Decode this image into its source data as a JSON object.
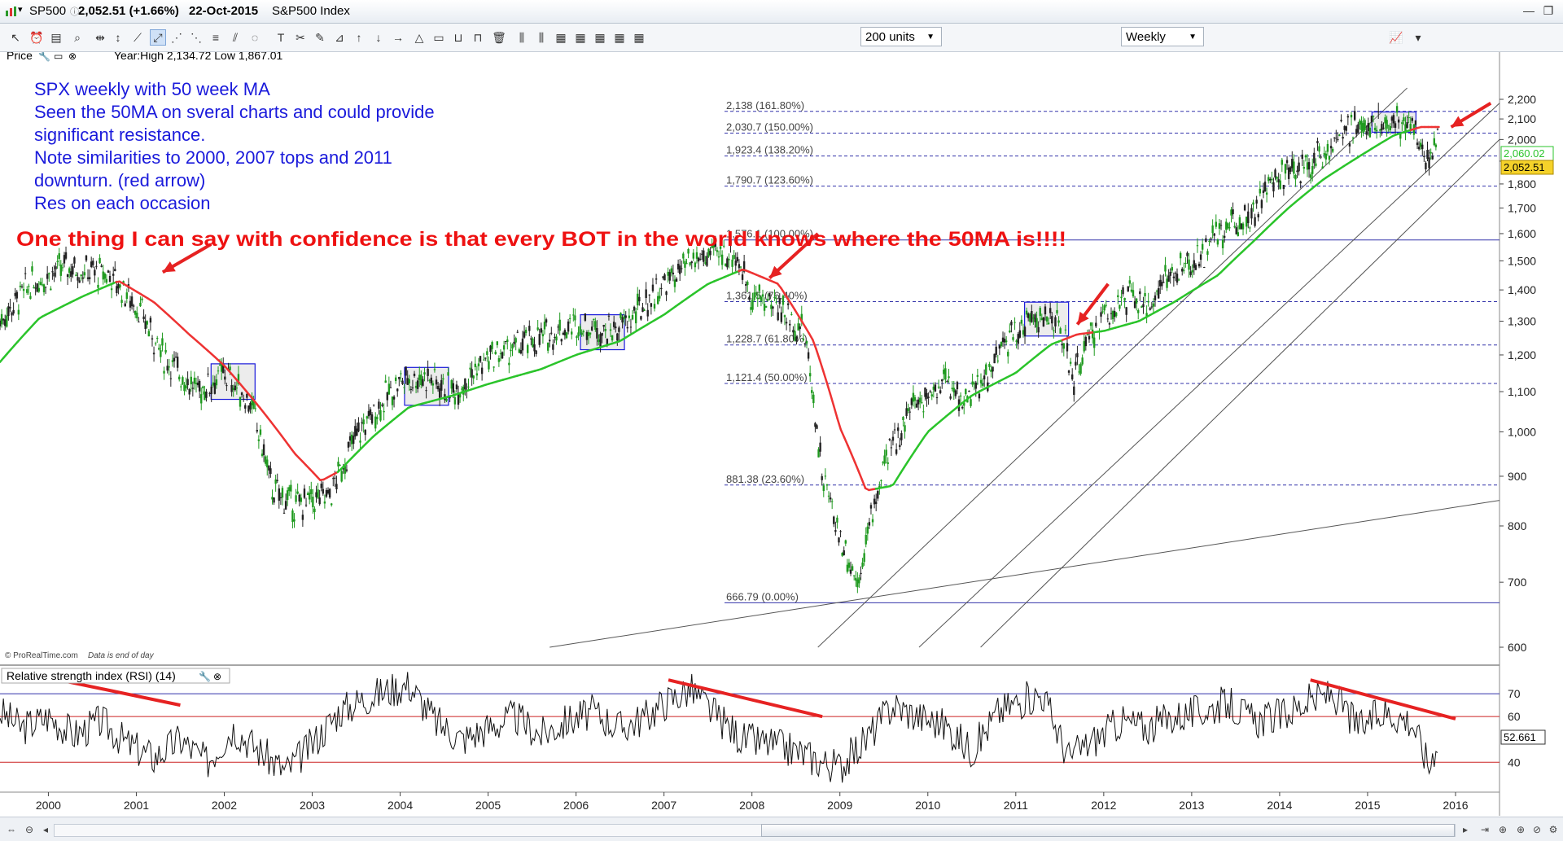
{
  "window": {
    "symbol": "SP500",
    "last": "2,052.51",
    "change": "(+1.66%)",
    "date": "22-Oct-2015",
    "name": "S&P500 Index"
  },
  "toolbar": {
    "units_value": "200 units",
    "interval_value": "Weekly"
  },
  "price_panel": {
    "label": "Price",
    "stats": "Year:High 2,134.72 Low 1,867.01",
    "credit": "© ProRealTime.com",
    "credit_note": "Data is end of day",
    "last_badge": "2,052.51",
    "ma_badge": "2,060.02",
    "annotation_lines": [
      "SPX weekly with 50 week MA",
      "Seen the 50MA on sveral charts and could provide",
      "significant resistance.",
      "Note similarities to 2000, 2007 tops and 2011",
      "downturn. (red arrow)",
      "Res on each occasion"
    ],
    "headline": "One thing I can say with confidence is that every BOT in the world knows where the 50MA is!!!!"
  },
  "rsi_panel": {
    "label": "Relative strength index (RSI) (14)",
    "last_badge": "52.661"
  },
  "colors": {
    "ma_green": "#2bc42b",
    "ma_red": "#ee3333",
    "annotation_blue": "#1a1adb",
    "headline_red": "#ee1111",
    "arrow_red": "#e62222",
    "fib_line": "#3333aa",
    "candle_up": "#1f9a1f",
    "candle_down": "#222222"
  },
  "chart_data": {
    "type": "line",
    "title": "",
    "ylim": [
      600,
      2200
    ],
    "y_ticks": [
      600,
      700,
      800,
      900,
      1000,
      1100,
      1200,
      1300,
      1400,
      1500,
      1600,
      1700,
      1800,
      1900,
      2000,
      2100,
      2200
    ],
    "y_tick_labels": [
      "600",
      "700",
      "800",
      "900",
      "1,000",
      "1,100",
      "1,200",
      "1,300",
      "1,400",
      "1,500",
      "1,600",
      "1,700",
      "1,800",
      "1,900",
      "2,000",
      "2,100",
      "2,200"
    ],
    "x_ticks": [
      2000,
      2001,
      2002,
      2003,
      2004,
      2005,
      2006,
      2007,
      2008,
      2009,
      2010,
      2011,
      2012,
      2013,
      2014,
      2015,
      2016
    ],
    "xlim": [
      1999.45,
      2016.5
    ],
    "price_series": {
      "name": "SP500",
      "x": [
        1999.45,
        1999.8,
        2000.2,
        2000.7,
        2001.0,
        2001.3,
        2001.7,
        2002.0,
        2002.3,
        2002.55,
        2002.8,
        2003.2,
        2003.5,
        2004.0,
        2004.3,
        2004.6,
        2005.0,
        2005.5,
        2006.0,
        2006.4,
        2006.6,
        2007.0,
        2007.4,
        2007.8,
        2008.0,
        2008.3,
        2008.6,
        2008.8,
        2009.0,
        2009.2,
        2009.5,
        2009.8,
        2010.2,
        2010.4,
        2010.6,
        2010.9,
        2011.2,
        2011.5,
        2011.65,
        2011.8,
        2012.0,
        2012.3,
        2012.45,
        2012.7,
        2013.0,
        2013.4,
        2013.7,
        2014.0,
        2014.3,
        2014.6,
        2014.8,
        2015.0,
        2015.3,
        2015.5,
        2015.65,
        2015.75,
        2015.81
      ],
      "values": [
        1300,
        1420,
        1480,
        1450,
        1350,
        1200,
        1100,
        1150,
        1070,
        870,
        840,
        860,
        990,
        1130,
        1140,
        1100,
        1190,
        1240,
        1290,
        1270,
        1300,
        1420,
        1510,
        1530,
        1380,
        1350,
        1260,
        900,
        780,
        700,
        920,
        1060,
        1130,
        1080,
        1110,
        1240,
        1320,
        1290,
        1130,
        1220,
        1320,
        1380,
        1330,
        1440,
        1480,
        1630,
        1690,
        1840,
        1880,
        1980,
        2050,
        2070,
        2100,
        2080,
        1920,
        1950,
        2052.51
      ]
    },
    "ma_series": {
      "name": "50MA",
      "x": [
        1999.45,
        1999.9,
        2000.4,
        2000.8,
        2001.2,
        2001.6,
        2002.0,
        2002.4,
        2002.8,
        2003.1,
        2003.3,
        2003.7,
        2004.1,
        2004.6,
        2005.0,
        2005.6,
        2006.0,
        2006.5,
        2007.0,
        2007.5,
        2007.9,
        2008.3,
        2008.7,
        2009.0,
        2009.3,
        2009.6,
        2010.0,
        2010.5,
        2011.0,
        2011.4,
        2011.7,
        2012.0,
        2012.4,
        2012.8,
        2013.3,
        2013.7,
        2014.1,
        2014.5,
        2014.9,
        2015.3,
        2015.6,
        2015.81
      ],
      "values": [
        1180,
        1310,
        1380,
        1430,
        1360,
        1260,
        1170,
        1060,
        950,
        890,
        910,
        990,
        1060,
        1090,
        1120,
        1160,
        1200,
        1240,
        1320,
        1420,
        1470,
        1420,
        1240,
        1010,
        870,
        880,
        1000,
        1090,
        1150,
        1230,
        1260,
        1270,
        1300,
        1360,
        1450,
        1570,
        1700,
        1820,
        1920,
        2020,
        2060,
        2060.02
      ]
    },
    "fib_levels": [
      {
        "value": 2138,
        "label": "2,138 (161.80%)",
        "style": "dashed"
      },
      {
        "value": 2030.7,
        "label": "2,030.7 (150.00%)",
        "style": "dashed"
      },
      {
        "value": 1923.4,
        "label": "1,923.4 (138.20%)",
        "style": "dashed"
      },
      {
        "value": 1790.7,
        "label": "1,790.7 (123.60%)",
        "style": "dashed"
      },
      {
        "value": 1576.1,
        "label": "1,576.1 (100.00%)",
        "style": "solid"
      },
      {
        "value": 1361.5,
        "label": "1,361.5 (76.40%)",
        "style": "dashed"
      },
      {
        "value": 1228.7,
        "label": "1,228.7 (61.80%)",
        "style": "dashed"
      },
      {
        "value": 1121.4,
        "label": "1,121.4 (50.00%)",
        "style": "dashed"
      },
      {
        "value": 881.38,
        "label": "881.38 (23.60%)",
        "style": "dashed"
      },
      {
        "value": 666.79,
        "label": "666.79 (0.00%)",
        "style": "solid"
      }
    ],
    "boxes": [
      {
        "x0": 2001.85,
        "x1": 2002.35,
        "y0": 1080,
        "y1": 1175
      },
      {
        "x0": 2004.05,
        "x1": 2004.55,
        "y0": 1065,
        "y1": 1165
      },
      {
        "x0": 2006.05,
        "x1": 2006.55,
        "y0": 1215,
        "y1": 1320
      },
      {
        "x0": 2011.1,
        "x1": 2011.6,
        "y0": 1255,
        "y1": 1360
      },
      {
        "x0": 2015.05,
        "x1": 2015.55,
        "y0": 2035,
        "y1": 2135
      }
    ],
    "trend_lines": [
      {
        "x0": 2008.75,
        "y0": 600,
        "x1": 2015.45,
        "y1": 2260
      },
      {
        "x0": 2009.9,
        "y0": 600,
        "x1": 2016.5,
        "y1": 2180
      },
      {
        "x0": 2010.6,
        "y0": 600,
        "x1": 2016.5,
        "y1": 2000
      },
      {
        "x0": 2005.7,
        "y0": 600,
        "x1": 2016.5,
        "y1": 850
      }
    ],
    "rsi": {
      "name": "RSI (14)",
      "levels": [
        70,
        60,
        40
      ],
      "ticks": [
        40,
        60,
        70
      ],
      "ylim": [
        28,
        80
      ],
      "x": [
        1999.45,
        1999.7,
        2000.0,
        2000.3,
        2000.6,
        2000.9,
        2001.2,
        2001.5,
        2001.8,
        2002.1,
        2002.4,
        2002.7,
        2003.0,
        2003.3,
        2003.6,
        2003.9,
        2004.1,
        2004.4,
        2004.7,
        2005.0,
        2005.3,
        2005.6,
        2005.9,
        2006.2,
        2006.5,
        2006.8,
        2007.0,
        2007.3,
        2007.6,
        2007.9,
        2008.2,
        2008.5,
        2008.8,
        2009.0,
        2009.3,
        2009.6,
        2009.9,
        2010.2,
        2010.5,
        2010.8,
        2011.0,
        2011.3,
        2011.6,
        2011.9,
        2012.2,
        2012.5,
        2012.8,
        2013.1,
        2013.4,
        2013.7,
        2014.0,
        2014.3,
        2014.6,
        2014.9,
        2015.2,
        2015.5,
        2015.7,
        2015.81
      ],
      "values": [
        62,
        55,
        60,
        52,
        58,
        48,
        42,
        50,
        40,
        55,
        45,
        36,
        48,
        62,
        68,
        72,
        74,
        58,
        50,
        55,
        60,
        52,
        58,
        62,
        55,
        60,
        66,
        72,
        60,
        50,
        48,
        45,
        40,
        38,
        50,
        65,
        60,
        56,
        45,
        62,
        66,
        70,
        42,
        50,
        58,
        55,
        60,
        62,
        66,
        58,
        60,
        66,
        70,
        55,
        62,
        58,
        38,
        52.661
      ]
    }
  }
}
